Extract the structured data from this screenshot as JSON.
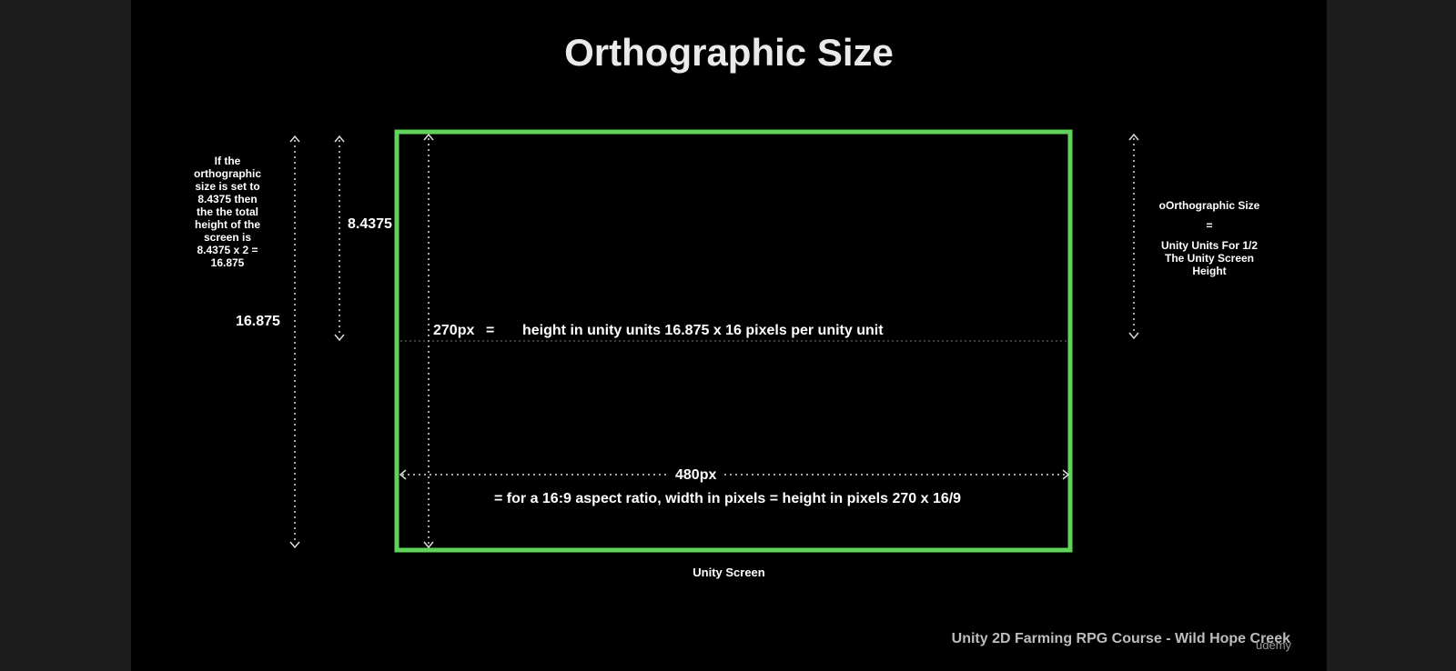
{
  "title": "Orthographic Size",
  "left_note": [
    "If the",
    "orthographic",
    "size is set to",
    "8.4375 then",
    "the the total",
    "height of the",
    "screen is",
    "8.4375 x 2 =",
    "16.875"
  ],
  "total_height_label": "16.875",
  "half_height_label": "8.4375",
  "height_row": {
    "px": "270px",
    "equals": "=",
    "description": "height in unity units 16.875 x 16 pixels per unity unit"
  },
  "width_row": {
    "px": "480px",
    "description": "=  for a 16:9 aspect ratio, width in pixels = height in pixels 270 x 16/9"
  },
  "screen_caption": "Unity Screen",
  "right_note": {
    "line1": "oOrthographic Size",
    "line2": "=",
    "line3": "Unity Units For 1/2",
    "line4": "The Unity Screen",
    "line5": "Height"
  },
  "footer": "Unity 2D Farming RPG Course - Wild Hope Creek",
  "watermark": "udemy",
  "colors": {
    "background": "#000000",
    "screen_border": "#5fd35a",
    "text": "#ffffff"
  }
}
